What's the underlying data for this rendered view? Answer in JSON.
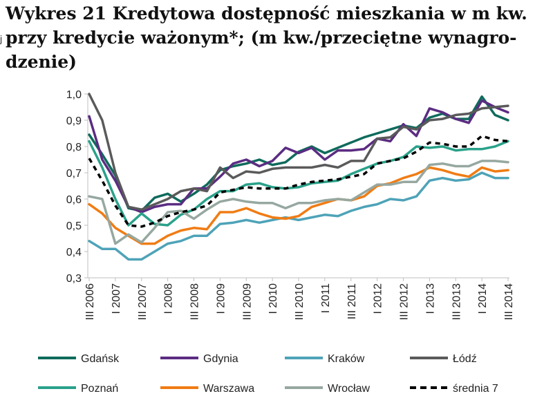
{
  "title_lines": [
    "Wykres 21 Kredytowa dostępność mieszkania w m kw.",
    "przy kredycie ważonym*; (m kw./przeciętne wynagro-",
    "dzenie)"
  ],
  "chart_data": {
    "type": "line",
    "title": "Wykres 21 Kredytowa dostępność mieszkania w m kw. przy kredycie ważonym*; (m kw./przeciętne wynagrodzenie)",
    "xlabel": "",
    "ylabel": "",
    "ylim": [
      0.3,
      1.0
    ],
    "yticks": [
      "1,0",
      "0,9",
      "0,8",
      "0,7",
      "0,6",
      "0,5",
      "0,4",
      "0,3"
    ],
    "ytick_values": [
      1.0,
      0.9,
      0.8,
      0.7,
      0.6,
      0.5,
      0.4,
      0.3
    ],
    "grid": false,
    "legend": "bottom",
    "x": [
      "III 2006",
      "IV 2006",
      "I 2007",
      "II 2007",
      "III 2007",
      "IV 2007",
      "I 2008",
      "II 2008",
      "III 2008",
      "IV 2008",
      "I 2009",
      "II 2009",
      "III 2009",
      "IV 2009",
      "I 2010",
      "II 2010",
      "III 2010",
      "IV 2010",
      "I 2011",
      "II 2011",
      "III 2011",
      "IV 2011",
      "I 2012",
      "II 2012",
      "III 2012",
      "IV 2012",
      "I 2013",
      "II 2013",
      "III 2013",
      "IV 2013",
      "I 2014",
      "II 2014",
      "III 2014"
    ],
    "x_tick_labels": [
      "III 2006",
      "I 2007",
      "III 2007",
      "I 2008",
      "III 2008",
      "I 2009",
      "III 2009",
      "I 2010",
      "III 2010",
      "I 2011",
      "III 2011",
      "I 2012",
      "III 2012",
      "I 2013",
      "III 2013",
      "I 2014",
      "III 2014"
    ],
    "series": [
      {
        "name": "Gdańsk",
        "color": "#0f6b5c",
        "dash": false,
        "values": [
          0.845,
          0.77,
          0.69,
          0.565,
          0.555,
          0.605,
          0.62,
          0.59,
          0.62,
          0.655,
          0.71,
          0.725,
          0.735,
          0.75,
          0.73,
          0.74,
          0.78,
          0.8,
          0.775,
          0.795,
          0.815,
          0.835,
          0.85,
          0.865,
          0.88,
          0.87,
          0.91,
          0.925,
          0.905,
          0.905,
          0.99,
          0.92,
          0.9
        ]
      },
      {
        "name": "Gdynia",
        "color": "#5b2c82",
        "dash": false,
        "values": [
          0.915,
          0.75,
          0.67,
          0.57,
          0.55,
          0.57,
          0.58,
          0.58,
          0.64,
          0.64,
          0.685,
          0.735,
          0.75,
          0.725,
          0.745,
          0.795,
          0.775,
          0.795,
          0.75,
          0.785,
          0.785,
          0.79,
          0.83,
          0.82,
          0.885,
          0.84,
          0.945,
          0.93,
          0.905,
          0.89,
          0.975,
          0.95,
          0.93
        ]
      },
      {
        "name": "Kraków",
        "color": "#4ea3b8",
        "dash": false,
        "values": [
          0.44,
          0.41,
          0.41,
          0.37,
          0.37,
          0.4,
          0.43,
          0.44,
          0.46,
          0.46,
          0.505,
          0.51,
          0.52,
          0.51,
          0.52,
          0.53,
          0.52,
          0.53,
          0.54,
          0.535,
          0.555,
          0.57,
          0.58,
          0.6,
          0.595,
          0.61,
          0.67,
          0.68,
          0.67,
          0.675,
          0.7,
          0.68,
          0.68
        ]
      },
      {
        "name": "Łódź",
        "color": "#5a5a5a",
        "dash": false,
        "values": [
          1.0,
          0.9,
          0.7,
          0.57,
          0.56,
          0.58,
          0.6,
          0.63,
          0.64,
          0.63,
          0.72,
          0.68,
          0.705,
          0.7,
          0.715,
          0.72,
          0.72,
          0.72,
          0.73,
          0.72,
          0.745,
          0.745,
          0.83,
          0.835,
          0.875,
          0.865,
          0.9,
          0.905,
          0.92,
          0.925,
          0.945,
          0.95,
          0.955
        ]
      },
      {
        "name": "Poznań",
        "color": "#2aa18a",
        "dash": false,
        "values": [
          0.82,
          0.72,
          0.6,
          0.5,
          0.545,
          0.505,
          0.5,
          0.54,
          0.56,
          0.6,
          0.63,
          0.63,
          0.655,
          0.66,
          0.645,
          0.64,
          0.645,
          0.66,
          0.665,
          0.67,
          0.695,
          0.715,
          0.735,
          0.745,
          0.76,
          0.8,
          0.795,
          0.8,
          0.785,
          0.79,
          0.79,
          0.8,
          0.82
        ]
      },
      {
        "name": "Warszawa",
        "color": "#f07c14",
        "dash": false,
        "values": [
          0.58,
          0.545,
          0.49,
          0.46,
          0.43,
          0.43,
          0.46,
          0.48,
          0.49,
          0.485,
          0.55,
          0.55,
          0.565,
          0.545,
          0.53,
          0.525,
          0.535,
          0.57,
          0.585,
          0.6,
          0.595,
          0.61,
          0.65,
          0.66,
          0.68,
          0.695,
          0.72,
          0.71,
          0.695,
          0.685,
          0.72,
          0.705,
          0.71
        ]
      },
      {
        "name": "Wrocław",
        "color": "#96a8a0",
        "dash": false,
        "values": [
          0.61,
          0.6,
          0.43,
          0.465,
          0.435,
          0.49,
          0.55,
          0.555,
          0.525,
          0.56,
          0.59,
          0.6,
          0.59,
          0.585,
          0.585,
          0.565,
          0.585,
          0.585,
          0.595,
          0.6,
          0.595,
          0.625,
          0.655,
          0.655,
          0.665,
          0.665,
          0.73,
          0.735,
          0.725,
          0.725,
          0.745,
          0.745,
          0.74
        ]
      },
      {
        "name": "średnia 7",
        "color": "#000000",
        "dash": true,
        "values": [
          0.755,
          0.67,
          0.575,
          0.5,
          0.495,
          0.51,
          0.535,
          0.55,
          0.56,
          0.575,
          0.625,
          0.635,
          0.645,
          0.64,
          0.64,
          0.64,
          0.655,
          0.665,
          0.67,
          0.675,
          0.685,
          0.695,
          0.735,
          0.745,
          0.755,
          0.78,
          0.815,
          0.81,
          0.8,
          0.8,
          0.84,
          0.825,
          0.82
        ]
      }
    ]
  }
}
